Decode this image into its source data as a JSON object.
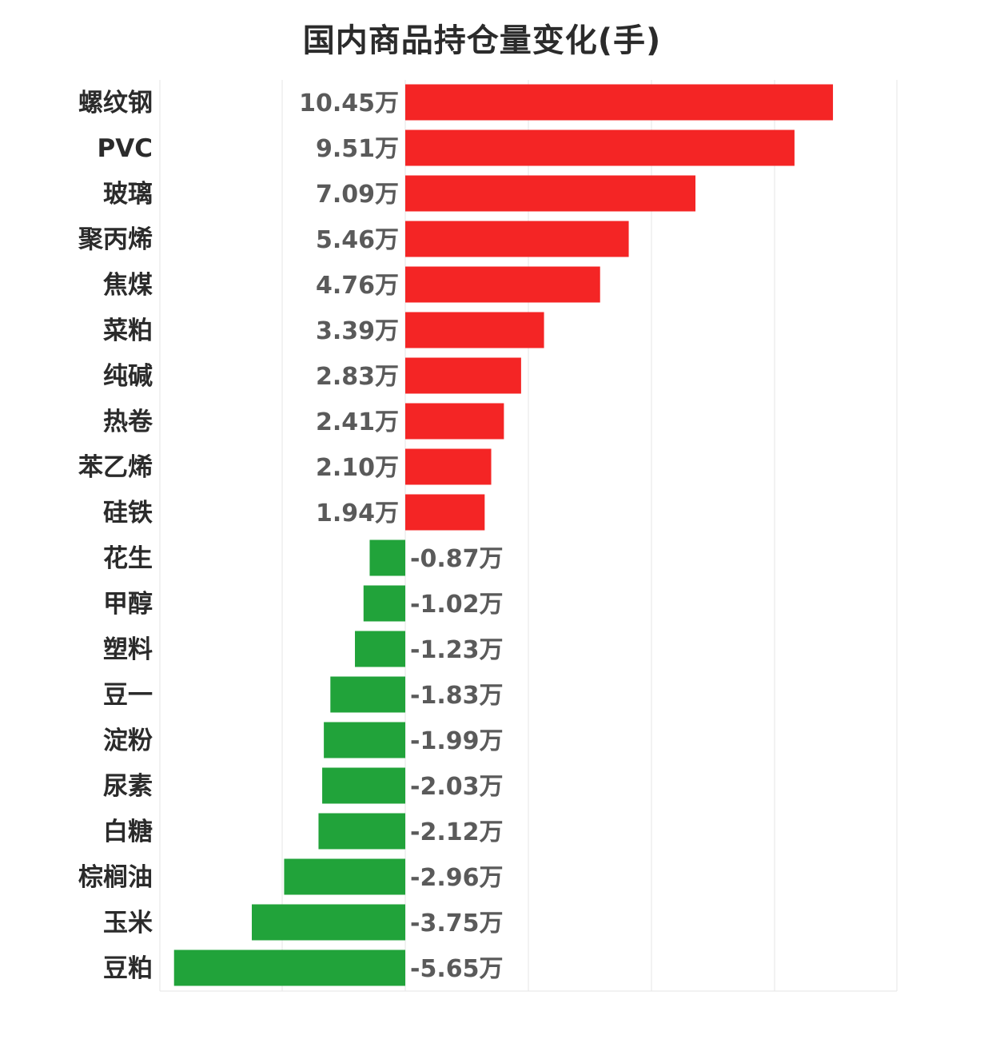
{
  "chart_data": {
    "type": "bar",
    "orientation": "horizontal",
    "title": "国内商品持仓量变化(手)",
    "unit_suffix": "万",
    "categories": [
      "螺纹钢",
      "PVC",
      "玻璃",
      "聚丙烯",
      "焦煤",
      "菜粕",
      "纯碱",
      "热卷",
      "苯乙烯",
      "硅铁",
      "花生",
      "甲醇",
      "塑料",
      "豆一",
      "淀粉",
      "尿素",
      "白糖",
      "棕榈油",
      "玉米",
      "豆粕"
    ],
    "values": [
      10.45,
      9.51,
      7.09,
      5.46,
      4.76,
      3.39,
      2.83,
      2.41,
      2.1,
      1.94,
      -0.87,
      -1.02,
      -1.23,
      -1.83,
      -1.99,
      -2.03,
      -2.12,
      -2.96,
      -3.75,
      -5.65
    ],
    "value_labels": [
      "10.45万",
      "9.51万",
      "7.09万",
      "5.46万",
      "4.76万",
      "3.39万",
      "2.83万",
      "2.41万",
      "2.10万",
      "1.94万",
      "-0.87万",
      "-1.02万",
      "-1.23万",
      "-1.83万",
      "-1.99万",
      "-2.03万",
      "-2.12万",
      "-2.96万",
      "-3.75万",
      "-5.65万"
    ],
    "xlim": [
      -6,
      12
    ],
    "grid": true,
    "legend": "none",
    "colors": {
      "positive": "#f42525",
      "negative": "#21a33a",
      "grid": "#e6e6e6"
    }
  }
}
